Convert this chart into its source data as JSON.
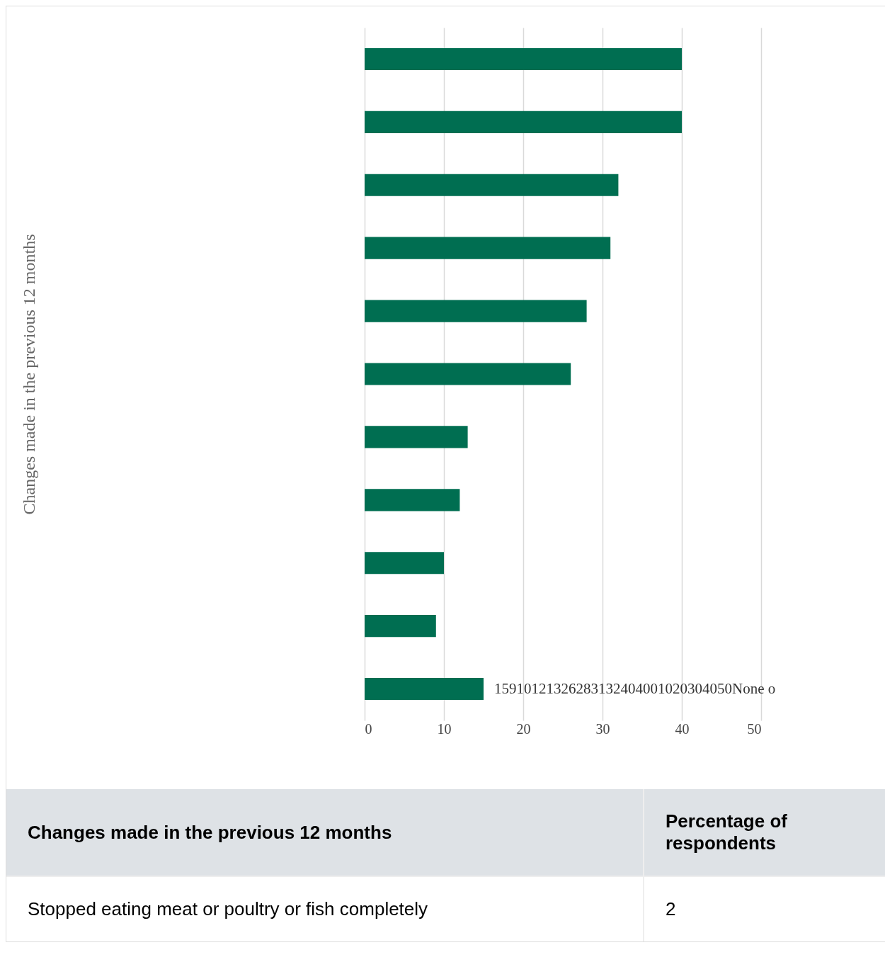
{
  "chart_data": [
    {
      "type": "bar",
      "orientation": "horizontal",
      "ylabel": "Changes made in the previous 12 months",
      "categories": [
        null,
        null,
        null,
        null,
        null,
        null,
        null,
        null,
        null,
        null,
        null
      ],
      "values": [
        40,
        40,
        32,
        31,
        28,
        26,
        13,
        12,
        10,
        9,
        15
      ],
      "color": "#006e51",
      "xlim": [
        0,
        50
      ],
      "xticks": [
        0,
        10,
        20,
        30,
        40,
        50
      ],
      "grid": "x",
      "annotations": [
        "15910121326283132404001020304050None o"
      ]
    },
    {
      "type": "other",
      "annotations": [
        "Changes made in the previous 12 months",
        "Percentage of respondents",
        "Stopped eating meat or poultry or fish completely",
        "2"
      ]
    }
  ]
}
